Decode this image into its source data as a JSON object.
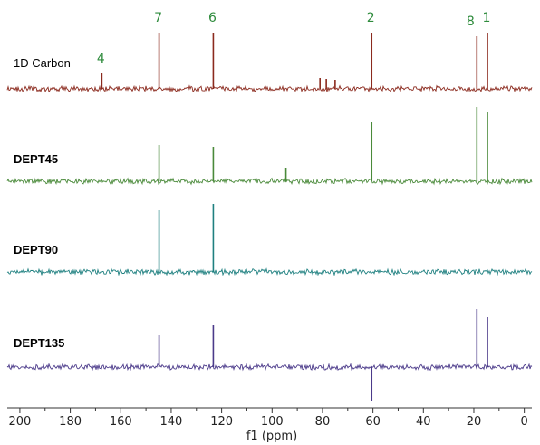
{
  "chart_data": {
    "type": "line",
    "xlabel": "f1 (ppm)",
    "xlim": [
      205,
      -3
    ],
    "x_ticks": [
      200,
      180,
      160,
      140,
      120,
      100,
      80,
      60,
      40,
      20,
      0
    ],
    "series": [
      {
        "name": "1D Carbon",
        "color": "#8b2a1e",
        "peaks": [
          {
            "ppm": 167.5,
            "intensity": 17
          },
          {
            "ppm": 144.8,
            "intensity": 62
          },
          {
            "ppm": 123.3,
            "intensity": 62
          },
          {
            "ppm": 81.0,
            "intensity": 12
          },
          {
            "ppm": 78.5,
            "intensity": 11
          },
          {
            "ppm": 75.0,
            "intensity": 10
          },
          {
            "ppm": 60.5,
            "intensity": 62
          },
          {
            "ppm": 18.8,
            "intensity": 58
          },
          {
            "ppm": 14.6,
            "intensity": 62
          }
        ]
      },
      {
        "name": "DEPT45",
        "color": "#4a8a3a",
        "peaks": [
          {
            "ppm": 144.8,
            "intensity": 40
          },
          {
            "ppm": 123.3,
            "intensity": 38
          },
          {
            "ppm": 94.5,
            "intensity": 15
          },
          {
            "ppm": 60.5,
            "intensity": 65
          },
          {
            "ppm": 18.8,
            "intensity": 82
          },
          {
            "ppm": 14.6,
            "intensity": 76
          }
        ]
      },
      {
        "name": "DEPT90",
        "color": "#1f8080",
        "peaks": [
          {
            "ppm": 144.8,
            "intensity": 68
          },
          {
            "ppm": 123.3,
            "intensity": 75
          }
        ]
      },
      {
        "name": "DEPT135",
        "color": "#4b3a8a",
        "peaks": [
          {
            "ppm": 144.8,
            "intensity": 35
          },
          {
            "ppm": 123.3,
            "intensity": 46
          },
          {
            "ppm": 60.5,
            "intensity": -38
          },
          {
            "ppm": 18.8,
            "intensity": 64
          },
          {
            "ppm": 14.6,
            "intensity": 55
          }
        ]
      }
    ],
    "peak_labels": [
      {
        "text": "4",
        "ppm": 167.5
      },
      {
        "text": "7",
        "ppm": 144.8
      },
      {
        "text": "6",
        "ppm": 123.3
      },
      {
        "text": "2",
        "ppm": 60.5
      },
      {
        "text": "8",
        "ppm": 18.8
      },
      {
        "text": "1",
        "ppm": 14.6
      }
    ]
  }
}
